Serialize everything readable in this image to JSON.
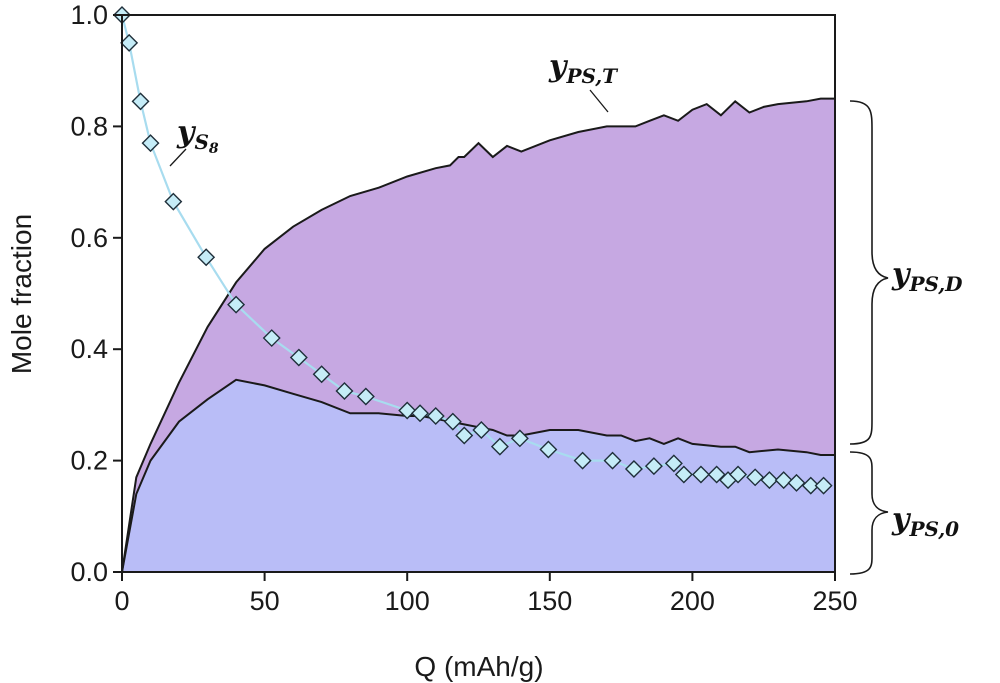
{
  "chart_data": {
    "type": "area",
    "xlabel": "Q (mAh/g)",
    "ylabel": "Mole fraction",
    "xlim": [
      0,
      250
    ],
    "ylim": [
      0,
      1.0
    ],
    "x_ticks": [
      0,
      50,
      100,
      150,
      200,
      250
    ],
    "x_tick_labels": [
      "0",
      "50",
      "100",
      "150",
      "200",
      "250"
    ],
    "y_ticks": [
      0,
      0.2,
      0.4,
      0.6,
      0.8,
      1.0
    ],
    "y_tick_labels": [
      "0.0",
      "0.2",
      "0.4",
      "0.6",
      "0.8",
      "1.0"
    ],
    "grid": false,
    "colors": {
      "lower_fill": "#b9bdf7",
      "upper_fill": "#c6a8e2",
      "marker_fill": "#c5ecf7",
      "marker_stroke": "#1f2f3a",
      "fit_line": "#a8dcef",
      "boundary": "#1a1a1a"
    },
    "series": [
      {
        "key": "total",
        "x": [
          0,
          5,
          10,
          20,
          30,
          40,
          50,
          60,
          70,
          80,
          90,
          100,
          110,
          115,
          118,
          120,
          125,
          130,
          135,
          140,
          150,
          160,
          170,
          175,
          180,
          185,
          190,
          195,
          200,
          205,
          210,
          215,
          220,
          225,
          230,
          240,
          245,
          250
        ],
        "y": [
          0,
          0.17,
          0.23,
          0.34,
          0.44,
          0.52,
          0.58,
          0.62,
          0.65,
          0.675,
          0.69,
          0.71,
          0.725,
          0.73,
          0.745,
          0.745,
          0.77,
          0.745,
          0.765,
          0.755,
          0.775,
          0.79,
          0.8,
          0.8,
          0.8,
          0.81,
          0.82,
          0.81,
          0.83,
          0.84,
          0.82,
          0.845,
          0.825,
          0.835,
          0.84,
          0.845,
          0.85,
          0.85
        ]
      },
      {
        "key": "base",
        "x": [
          0,
          5,
          10,
          20,
          30,
          40,
          50,
          60,
          70,
          80,
          90,
          100,
          105,
          110,
          120,
          125,
          130,
          135,
          140,
          150,
          160,
          170,
          175,
          180,
          185,
          190,
          195,
          200,
          210,
          215,
          220,
          230,
          240,
          245,
          250
        ],
        "y": [
          0,
          0.14,
          0.2,
          0.27,
          0.31,
          0.345,
          0.335,
          0.32,
          0.305,
          0.285,
          0.285,
          0.28,
          0.28,
          0.275,
          0.265,
          0.26,
          0.255,
          0.245,
          0.245,
          0.255,
          0.255,
          0.245,
          0.245,
          0.235,
          0.24,
          0.23,
          0.24,
          0.23,
          0.225,
          0.225,
          0.215,
          0.22,
          0.215,
          0.21,
          0.21
        ]
      },
      {
        "key": "s8",
        "x": [
          0,
          2.5,
          6.5,
          10,
          18,
          29.5,
          40,
          52.5,
          62,
          70,
          78,
          85.5,
          100,
          104.5,
          110,
          116,
          120,
          126,
          132.5,
          139.5,
          149.5,
          161.5,
          172,
          179.5,
          186.5,
          193.5,
          197,
          203,
          208.5,
          212.5,
          216,
          222,
          227,
          232,
          236.5,
          241.5,
          246
        ],
        "y": [
          1.0,
          0.95,
          0.845,
          0.77,
          0.665,
          0.565,
          0.48,
          0.42,
          0.385,
          0.355,
          0.325,
          0.315,
          0.29,
          0.285,
          0.28,
          0.27,
          0.245,
          0.255,
          0.225,
          0.24,
          0.22,
          0.2,
          0.2,
          0.185,
          0.19,
          0.195,
          0.175,
          0.175,
          0.175,
          0.165,
          0.175,
          0.17,
          0.165,
          0.165,
          0.16,
          0.155,
          0.155
        ]
      }
    ],
    "annotations": [
      {
        "key": "yS8",
        "base": "y",
        "sub": "S",
        "sub2": "8"
      },
      {
        "key": "yPST",
        "base": "y",
        "sub": "PS,T"
      },
      {
        "key": "yPSD",
        "base": "y",
        "sub": "PS,D"
      },
      {
        "key": "yPS0",
        "base": "y",
        "sub": "PS,0"
      }
    ]
  }
}
